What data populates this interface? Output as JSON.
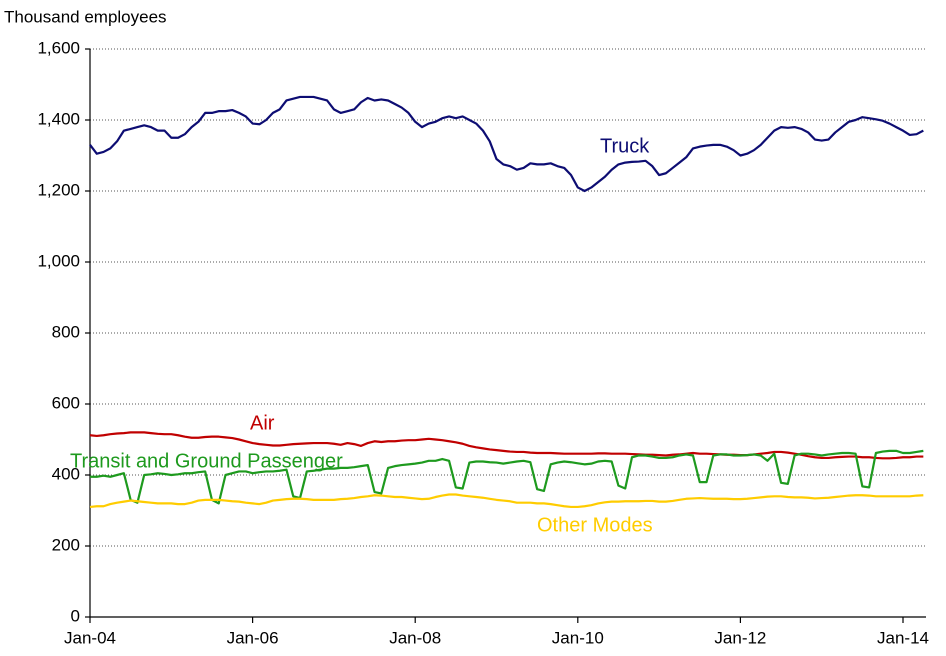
{
  "chart_data": {
    "type": "line",
    "y_axis_label": "Thousand employees",
    "categories": [
      "Jan-04",
      null,
      null,
      null,
      null,
      null,
      null,
      null,
      null,
      null,
      null,
      null,
      null,
      null,
      null,
      null,
      null,
      null,
      null,
      null,
      null,
      null,
      null,
      null,
      "Jan-06",
      null,
      null,
      null,
      null,
      null,
      null,
      null,
      null,
      null,
      null,
      null,
      null,
      null,
      null,
      null,
      null,
      null,
      null,
      null,
      null,
      null,
      null,
      null,
      "Jan-08",
      null,
      null,
      null,
      null,
      null,
      null,
      null,
      null,
      null,
      null,
      null,
      null,
      null,
      null,
      null,
      null,
      null,
      null,
      null,
      null,
      null,
      null,
      null,
      "Jan-10",
      null,
      null,
      null,
      null,
      null,
      null,
      null,
      null,
      null,
      null,
      null,
      null,
      null,
      null,
      null,
      null,
      null,
      null,
      null,
      null,
      null,
      null,
      null,
      "Jan-12",
      null,
      null,
      null,
      null,
      null,
      null,
      null,
      null,
      null,
      null,
      null,
      null,
      null,
      null,
      null,
      null,
      null,
      null,
      null,
      null,
      null,
      null,
      null,
      "Jan-14",
      null,
      null,
      null
    ],
    "ylim": [
      0,
      1600
    ],
    "yticks": [
      0,
      200,
      400,
      600,
      800,
      {
        "value": 1000,
        "label": "1,000"
      },
      {
        "value": 1200,
        "label": "1,200"
      },
      {
        "value": 1400,
        "label": "1,400"
      },
      {
        "value": 1600,
        "label": "1,600"
      }
    ],
    "grid": true,
    "series": [
      {
        "name": "Truck",
        "color": "#0d0d73",
        "values": [
          1330,
          1305,
          1310,
          1320,
          1340,
          1370,
          1375,
          1380,
          1385,
          1380,
          1370,
          1370,
          1350,
          1350,
          1360,
          1380,
          1395,
          1420,
          1420,
          1425,
          1425,
          1428,
          1420,
          1410,
          1390,
          1388,
          1400,
          1420,
          1430,
          1455,
          1460,
          1465,
          1465,
          1465,
          1460,
          1455,
          1430,
          1420,
          1425,
          1430,
          1450,
          1462,
          1455,
          1458,
          1455,
          1445,
          1435,
          1420,
          1395,
          1380,
          1390,
          1395,
          1405,
          1410,
          1405,
          1410,
          1400,
          1390,
          1370,
          1340,
          1290,
          1275,
          1270,
          1260,
          1265,
          1278,
          1275,
          1275,
          1278,
          1270,
          1265,
          1245,
          1210,
          1200,
          1210,
          1225,
          1240,
          1260,
          1275,
          1280,
          1282,
          1283,
          1285,
          1270,
          1245,
          1250,
          1265,
          1280,
          1295,
          1320,
          1325,
          1328,
          1330,
          1330,
          1325,
          1315,
          1300,
          1305,
          1315,
          1330,
          1350,
          1370,
          1380,
          1378,
          1380,
          1375,
          1365,
          1345,
          1342,
          1345,
          1365,
          1380,
          1395,
          1400,
          1408,
          1405,
          1402,
          1398,
          1390,
          1380,
          1370,
          1358,
          1360,
          1370
        ]
      },
      {
        "name": "Air",
        "color": "#c00000",
        "values": [
          512,
          510,
          512,
          515,
          517,
          518,
          520,
          520,
          520,
          518,
          516,
          515,
          515,
          512,
          508,
          505,
          505,
          507,
          508,
          508,
          506,
          504,
          500,
          495,
          490,
          487,
          485,
          483,
          483,
          485,
          487,
          488,
          489,
          490,
          490,
          490,
          488,
          485,
          490,
          487,
          482,
          490,
          495,
          493,
          495,
          495,
          497,
          498,
          498,
          500,
          502,
          500,
          498,
          495,
          492,
          488,
          482,
          478,
          475,
          472,
          470,
          468,
          466,
          465,
          465,
          463,
          462,
          462,
          462,
          461,
          460,
          460,
          460,
          460,
          460,
          461,
          461,
          460,
          460,
          460,
          459,
          458,
          457,
          457,
          456,
          455,
          457,
          458,
          460,
          462,
          460,
          460,
          459,
          458,
          457,
          457,
          456,
          456,
          458,
          460,
          462,
          465,
          465,
          463,
          460,
          457,
          453,
          450,
          448,
          448,
          450,
          451,
          452,
          452,
          450,
          450,
          448,
          447,
          447,
          448,
          450,
          450,
          452,
          452
        ]
      },
      {
        "name": "Transit and Ground Passenger",
        "color": "#1e9a1e",
        "values": [
          395,
          395,
          398,
          395,
          400,
          405,
          330,
          322,
          400,
          402,
          405,
          403,
          400,
          402,
          405,
          405,
          408,
          410,
          330,
          320,
          400,
          405,
          410,
          410,
          405,
          408,
          410,
          410,
          412,
          415,
          340,
          335,
          410,
          412,
          415,
          418,
          418,
          420,
          420,
          422,
          425,
          428,
          352,
          348,
          420,
          425,
          428,
          430,
          432,
          435,
          440,
          440,
          445,
          440,
          365,
          362,
          435,
          438,
          438,
          436,
          435,
          432,
          435,
          438,
          440,
          436,
          360,
          355,
          430,
          435,
          438,
          436,
          433,
          430,
          432,
          438,
          440,
          438,
          370,
          362,
          450,
          455,
          455,
          452,
          448,
          448,
          450,
          455,
          458,
          455,
          380,
          380,
          455,
          458,
          458,
          455,
          455,
          456,
          458,
          455,
          440,
          460,
          378,
          375,
          455,
          460,
          460,
          458,
          455,
          458,
          460,
          462,
          462,
          460,
          368,
          365,
          462,
          466,
          468,
          468,
          462,
          462,
          465,
          468
        ]
      },
      {
        "name": "Other Modes",
        "color": "#ffcc00",
        "values": [
          310,
          312,
          312,
          318,
          322,
          325,
          328,
          326,
          324,
          322,
          320,
          320,
          320,
          318,
          318,
          322,
          328,
          330,
          330,
          330,
          328,
          326,
          325,
          322,
          320,
          318,
          322,
          328,
          330,
          332,
          333,
          333,
          332,
          330,
          330,
          330,
          330,
          332,
          333,
          335,
          338,
          340,
          343,
          342,
          340,
          338,
          338,
          336,
          334,
          332,
          333,
          338,
          342,
          345,
          345,
          342,
          340,
          338,
          336,
          333,
          330,
          328,
          326,
          322,
          322,
          322,
          320,
          320,
          318,
          315,
          312,
          310,
          310,
          312,
          315,
          320,
          323,
          325,
          325,
          326,
          326,
          326,
          327,
          327,
          325,
          325,
          327,
          330,
          333,
          334,
          335,
          334,
          333,
          333,
          333,
          332,
          332,
          333,
          335,
          337,
          339,
          340,
          340,
          338,
          337,
          337,
          336,
          334,
          335,
          336,
          338,
          340,
          342,
          343,
          343,
          342,
          340,
          340,
          340,
          340,
          340,
          340,
          342,
          343
        ]
      }
    ]
  }
}
